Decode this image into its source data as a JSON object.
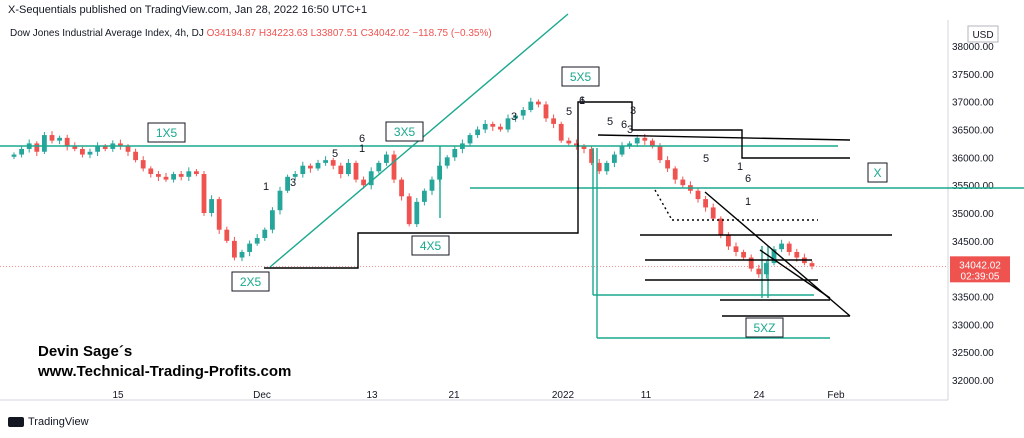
{
  "header": "X-Sequentials published on TradingView.com, Jan 28, 2022 16:50 UTC+1",
  "legend": {
    "symbol": "Dow Jones Industrial Average Index, 4h, DJ",
    "o": "O34194.87",
    "h": "H34223.63",
    "l": "L33807.51",
    "c": "C34042.02",
    "change": "−118.75 (−0.35%)"
  },
  "currency": "USD",
  "price_badge": {
    "price": "34042.02",
    "timer": "02:39:05"
  },
  "author": {
    "name": "Devin Sage´s",
    "site": "www.Technical-Trading-Profits.com"
  },
  "footer": "TradingView",
  "colors": {
    "up": "#26a69a",
    "down": "#ef5350",
    "teal_line": "#1aa88e",
    "black_line": "#000000",
    "badge": "#ef5350"
  },
  "chart_data": {
    "type": "candlestick",
    "y_ticks": [
      38000,
      37500,
      37000,
      36500,
      36000,
      35500,
      35000,
      34500,
      34000,
      33500,
      33000,
      32500,
      32000
    ],
    "y_tick_labels": [
      "38000.00",
      "37500.00",
      "37000.00",
      "36500.00",
      "36000.00",
      "35500.00",
      "35000.00",
      "34500.00",
      "34000.00",
      "33500.00",
      "33000.00",
      "32500.00",
      "32000.00"
    ],
    "x_tick_labels": [
      "15",
      "Dec",
      "13",
      "21",
      "2022",
      "11",
      "24",
      "Feb"
    ],
    "ylim": [
      31800,
      38200
    ],
    "last_price": 34042.02,
    "closes": [
      36050,
      36150,
      36250,
      36100,
      36400,
      36300,
      36350,
      36200,
      36150,
      36050,
      36100,
      36200,
      36150,
      36250,
      36200,
      36100,
      35950,
      35800,
      35700,
      35650,
      35600,
      35700,
      35650,
      35750,
      35700,
      35000,
      35250,
      34700,
      34500,
      34200,
      34300,
      34450,
      34550,
      34700,
      35050,
      35400,
      35650,
      35700,
      35850,
      35800,
      35900,
      35950,
      35850,
      35700,
      35900,
      35600,
      35500,
      35750,
      35900,
      36050,
      35600,
      35300,
      34800,
      35200,
      35400,
      35600,
      35850,
      36000,
      36150,
      36250,
      36400,
      36500,
      36600,
      36550,
      36500,
      36700,
      36750,
      36850,
      37000,
      36950,
      36700,
      36600,
      36300,
      36250,
      36200,
      36150,
      35900,
      35750,
      35900,
      36050,
      36200,
      36250,
      36350,
      36300,
      36200,
      35950,
      35800,
      35600,
      35500,
      35400,
      35250,
      35100,
      34900,
      34600,
      34400,
      34300,
      34200,
      34000,
      33900,
      34100,
      34350,
      34450,
      34300,
      34200,
      34100,
      34042
    ],
    "annotations": [
      {
        "text": "1X5",
        "boxed": true
      },
      {
        "text": "3X5",
        "boxed": true
      },
      {
        "text": "5X5",
        "boxed": true
      },
      {
        "text": "2X5",
        "boxed": true
      },
      {
        "text": "4X5",
        "boxed": true
      },
      {
        "text": "X",
        "boxed": true
      },
      {
        "text": "5XZ",
        "boxed": true
      },
      {
        "text": "1",
        "boxed": false
      },
      {
        "text": "3",
        "boxed": false
      },
      {
        "text": "5",
        "boxed": false
      },
      {
        "text": "6",
        "boxed": false
      },
      {
        "text": "1",
        "boxed": false
      },
      {
        "text": "3",
        "boxed": false
      },
      {
        "text": "5",
        "boxed": false
      },
      {
        "text": "6",
        "boxed": false
      },
      {
        "text": "1",
        "boxed": false
      },
      {
        "text": "3",
        "boxed": false
      },
      {
        "text": "5",
        "boxed": false
      },
      {
        "text": "6",
        "boxed": false
      },
      {
        "text": "3",
        "boxed": false
      },
      {
        "text": "5",
        "boxed": false
      },
      {
        "text": "1",
        "boxed": false
      },
      {
        "text": "6",
        "boxed": false
      },
      {
        "text": "1",
        "boxed": false
      }
    ]
  }
}
